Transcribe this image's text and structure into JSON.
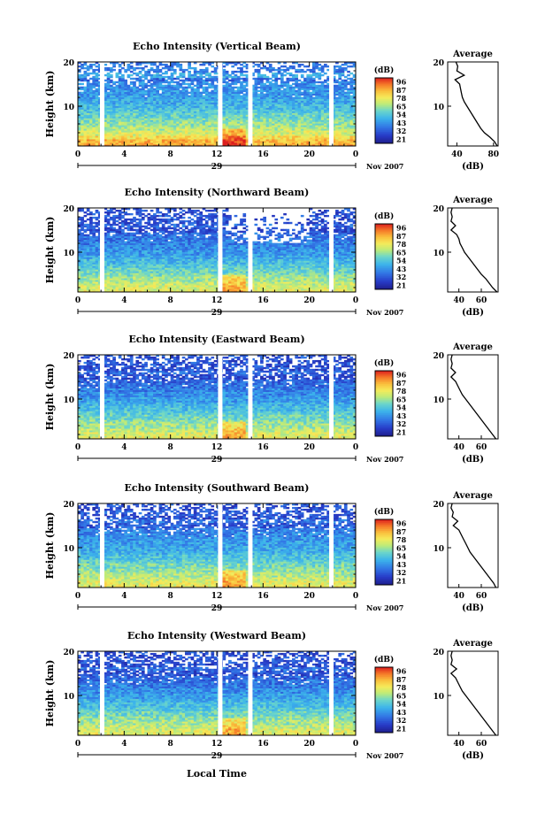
{
  "figure": {
    "xlabel_bottom": "Local Time",
    "date_label": "Nov 2007",
    "colorbar_title": "(dB)",
    "colorbar_ticks": [
      "96",
      "87",
      "78",
      "65",
      "54",
      "43",
      "32",
      "21"
    ],
    "colorbar_colors": [
      "#d7191c",
      "#f46d43",
      "#fdae61",
      "#fee08b",
      "#e6f598",
      "#abdda4",
      "#66c2a5",
      "#3288bd",
      "#3b4cc0",
      "#2b2f8f"
    ],
    "avg_title": "Average",
    "avg_xlabel": "(dB)"
  },
  "chart_data": [
    {
      "type": "heatmap",
      "title": "Echo Intensity (Vertical Beam)",
      "ylabel": "Height (km)",
      "x_ticks": [
        "0",
        "4",
        "8",
        "12",
        "16",
        "20",
        "0"
      ],
      "x_day_label": "29",
      "y_ticks": [
        "20",
        "10"
      ],
      "xlim": [
        0,
        24
      ],
      "ylim": [
        1,
        20
      ],
      "gaps_hours": [
        2.1,
        12.3,
        14.9,
        21.9
      ],
      "average_profile": {
        "x_ticks": [
          "40",
          "80"
        ],
        "xlim": [
          30,
          85
        ],
        "height_km": [
          1,
          2,
          3,
          4,
          5,
          6,
          7,
          8,
          9,
          10,
          11,
          12,
          13,
          14,
          15,
          16,
          17,
          18,
          19,
          20
        ],
        "intensity_db": [
          84,
          81,
          76,
          70,
          66,
          63,
          60,
          57,
          54,
          51,
          48,
          46,
          45,
          44,
          43,
          38,
          48,
          40,
          41,
          39
        ]
      }
    },
    {
      "type": "heatmap",
      "title": "Echo Intensity (Northward Beam)",
      "ylabel": "Height (km)",
      "x_ticks": [
        "0",
        "4",
        "8",
        "12",
        "16",
        "20",
        "0"
      ],
      "x_day_label": "29",
      "y_ticks": [
        "20",
        "10"
      ],
      "xlim": [
        0,
        24
      ],
      "ylim": [
        1,
        20
      ],
      "gaps_hours": [
        2.1,
        12.3,
        14.9,
        21.9
      ],
      "average_profile": {
        "x_ticks": [
          "40",
          "60"
        ],
        "xlim": [
          30,
          75
        ],
        "height_km": [
          1,
          2,
          3,
          4,
          5,
          6,
          7,
          8,
          9,
          10,
          11,
          12,
          13,
          14,
          15,
          16,
          17,
          18,
          19,
          20
        ],
        "intensity_db": [
          74,
          70,
          67,
          64,
          60,
          57,
          54,
          51,
          48,
          45,
          43,
          41,
          40,
          38,
          33,
          37,
          33,
          34,
          33,
          34
        ]
      }
    },
    {
      "type": "heatmap",
      "title": "Echo Intensity (Eastward Beam)",
      "ylabel": "Height (km)",
      "x_ticks": [
        "0",
        "4",
        "8",
        "12",
        "16",
        "20",
        "0"
      ],
      "x_day_label": "29",
      "y_ticks": [
        "20",
        "10"
      ],
      "xlim": [
        0,
        24
      ],
      "ylim": [
        1,
        20
      ],
      "gaps_hours": [
        2.1,
        12.3,
        14.9,
        21.9
      ],
      "average_profile": {
        "x_ticks": [
          "40",
          "60"
        ],
        "xlim": [
          30,
          75
        ],
        "height_km": [
          1,
          2,
          3,
          4,
          5,
          6,
          7,
          8,
          9,
          10,
          11,
          12,
          13,
          14,
          15,
          16,
          17,
          18,
          19,
          20
        ],
        "intensity_db": [
          73,
          70,
          67,
          64,
          61,
          58,
          55,
          52,
          49,
          46,
          43,
          41,
          39,
          37,
          33,
          37,
          33,
          34,
          33,
          34
        ]
      }
    },
    {
      "type": "heatmap",
      "title": "Echo Intensity (Southward Beam)",
      "ylabel": "Height (km)",
      "x_ticks": [
        "0",
        "4",
        "8",
        "12",
        "16",
        "20",
        "0"
      ],
      "x_day_label": "29",
      "y_ticks": [
        "20",
        "10"
      ],
      "xlim": [
        0,
        24
      ],
      "ylim": [
        1,
        20
      ],
      "gaps_hours": [
        2.1,
        12.3,
        14.9,
        21.9
      ],
      "average_profile": {
        "x_ticks": [
          "40",
          "60"
        ],
        "xlim": [
          30,
          75
        ],
        "height_km": [
          1,
          2,
          3,
          4,
          5,
          6,
          7,
          8,
          9,
          10,
          11,
          12,
          13,
          14,
          15,
          16,
          17,
          18,
          19,
          20
        ],
        "intensity_db": [
          73,
          71,
          68,
          65,
          62,
          59,
          56,
          53,
          50,
          48,
          46,
          44,
          42,
          40,
          35,
          39,
          34,
          35,
          33,
          34
        ]
      }
    },
    {
      "type": "heatmap",
      "title": "Echo Intensity (Westward Beam)",
      "ylabel": "Height (km)",
      "x_ticks": [
        "0",
        "4",
        "8",
        "12",
        "16",
        "20",
        "0"
      ],
      "x_day_label": "29",
      "y_ticks": [
        "20",
        "10"
      ],
      "xlim": [
        0,
        24
      ],
      "ylim": [
        1,
        20
      ],
      "gaps_hours": [
        2.1,
        12.3,
        14.9,
        21.9
      ],
      "average_profile": {
        "x_ticks": [
          "40",
          "60"
        ],
        "xlim": [
          30,
          75
        ],
        "height_km": [
          1,
          2,
          3,
          4,
          5,
          6,
          7,
          8,
          9,
          10,
          11,
          12,
          13,
          14,
          15,
          16,
          17,
          18,
          19,
          20
        ],
        "intensity_db": [
          73,
          70,
          67,
          64,
          61,
          58,
          55,
          52,
          49,
          46,
          43,
          41,
          39,
          37,
          33,
          38,
          33,
          34,
          33,
          34
        ]
      }
    }
  ]
}
